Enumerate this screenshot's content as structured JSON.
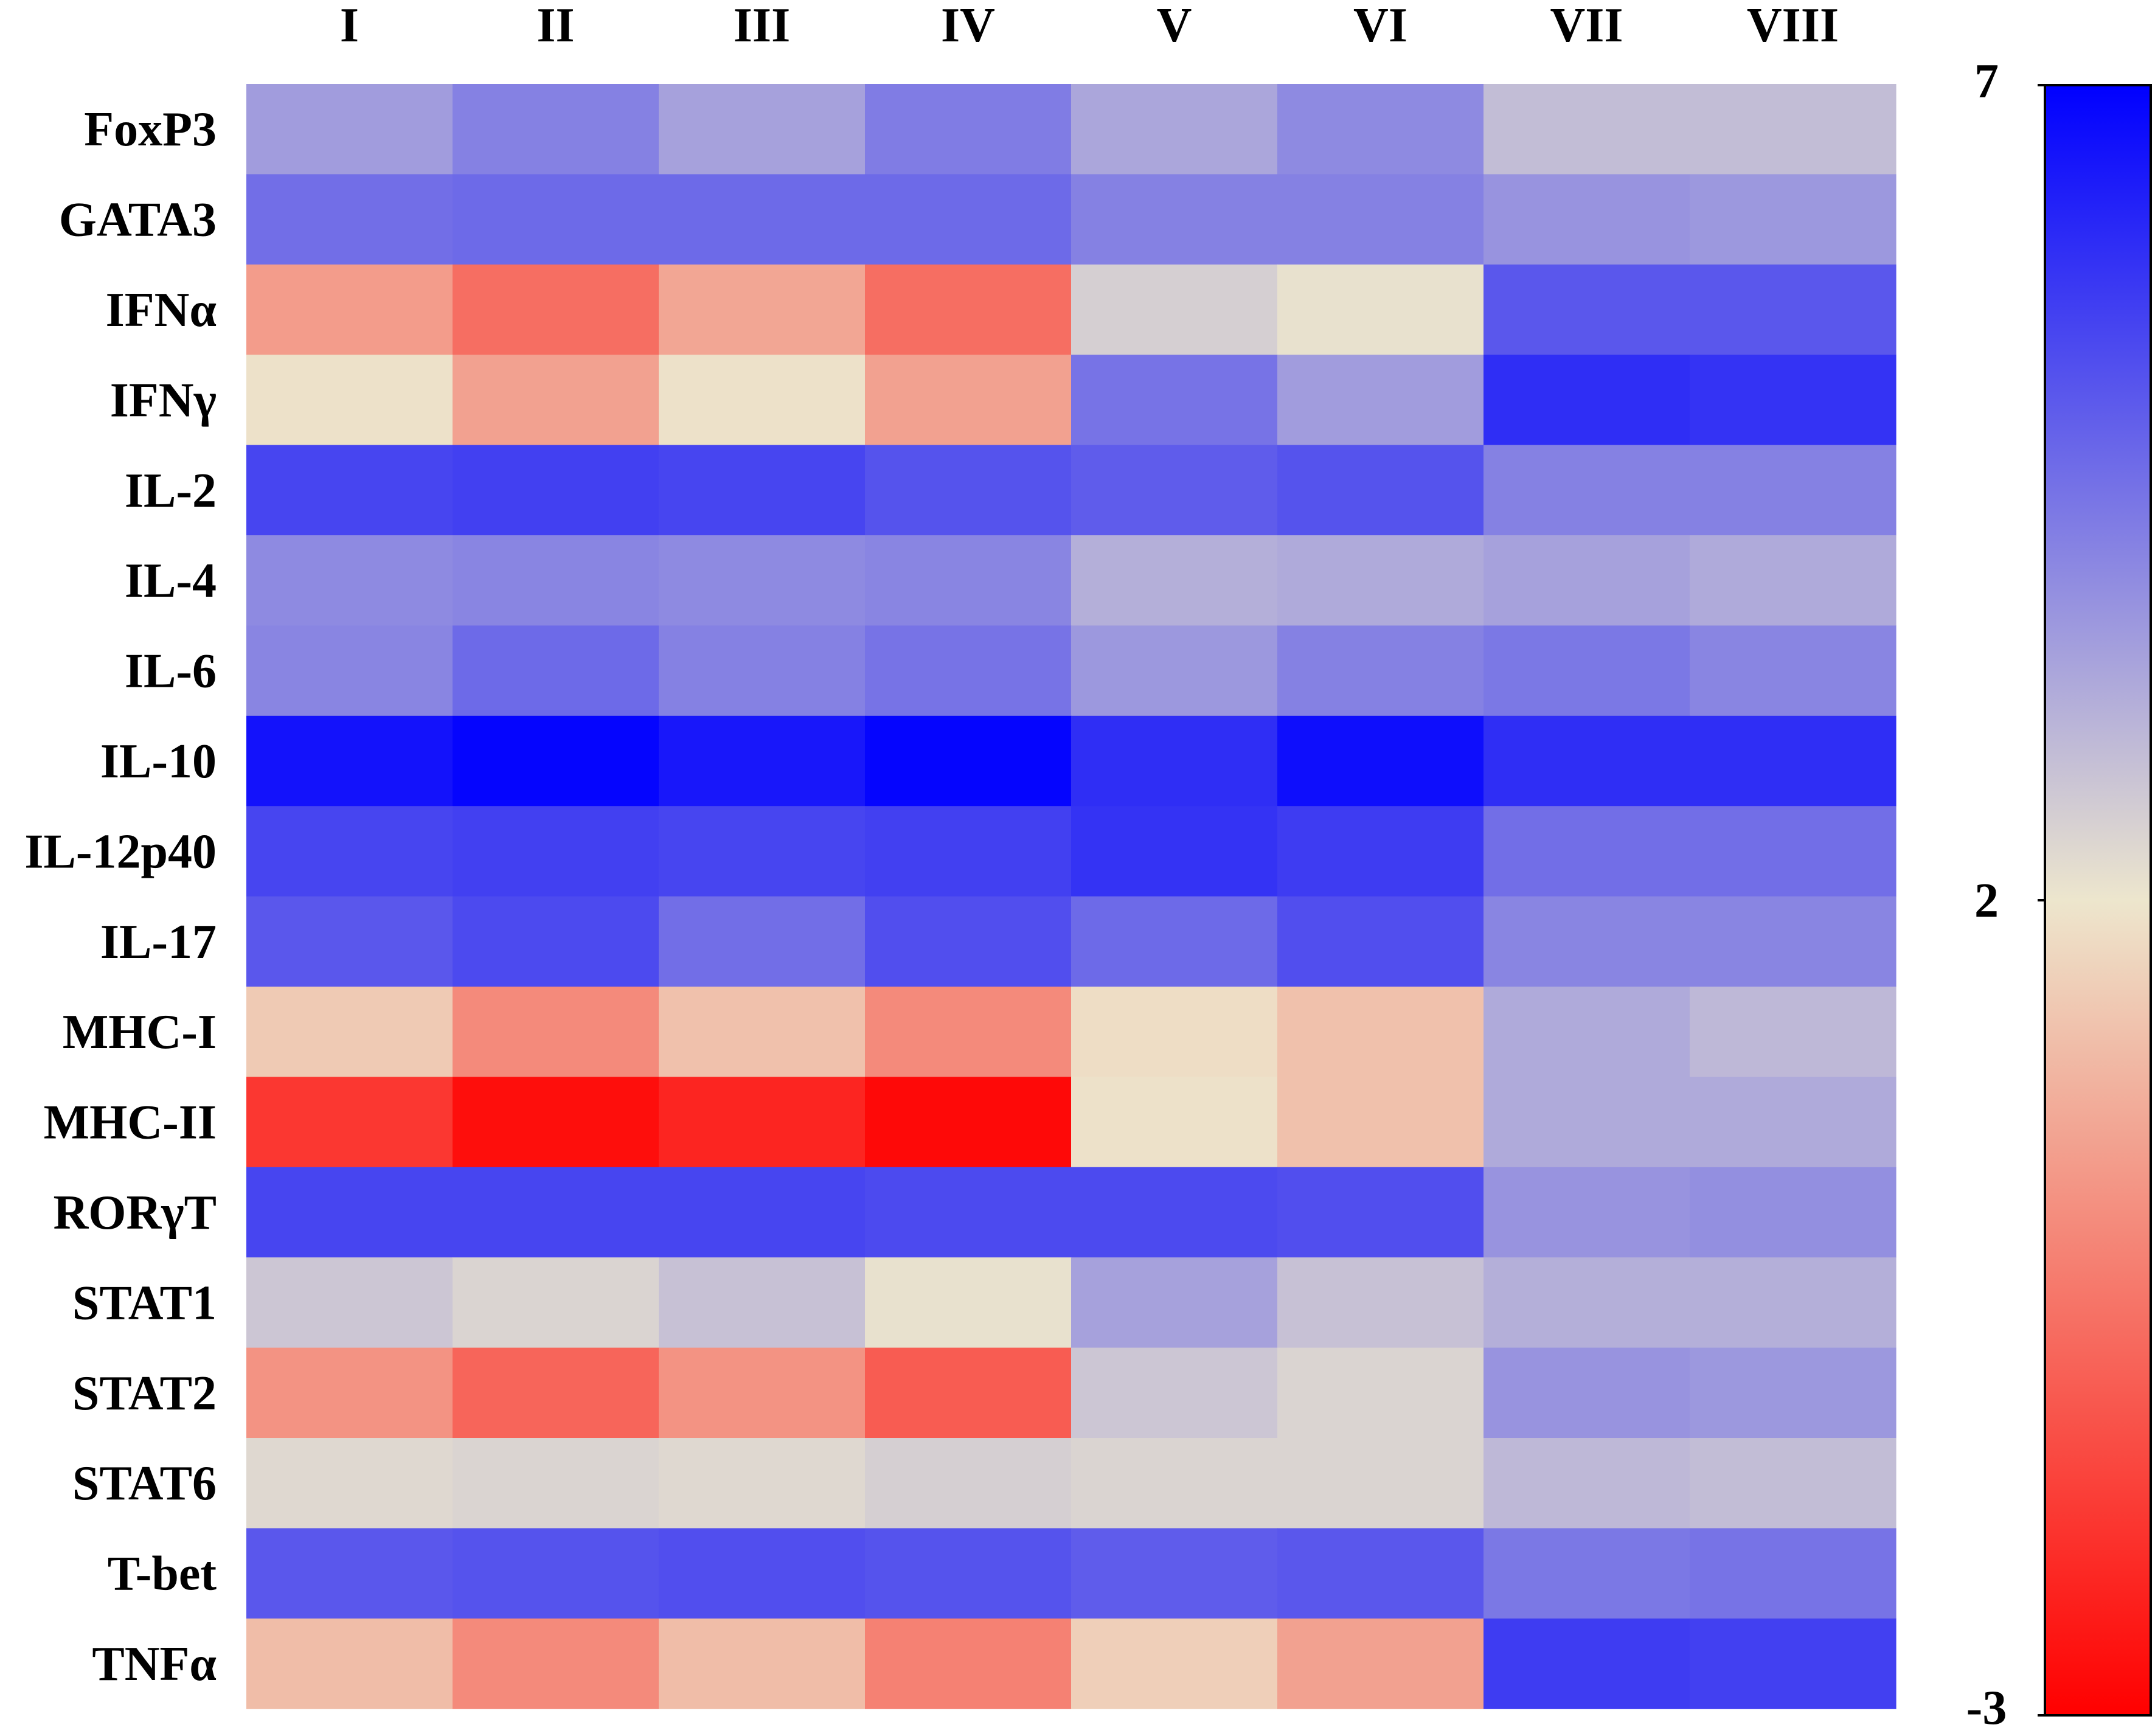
{
  "chart_data": {
    "type": "heatmap",
    "x_categories": [
      "I",
      "II",
      "III",
      "IV",
      "V",
      "VI",
      "VII",
      "VIII"
    ],
    "y_categories": [
      "FoxP3",
      "GATA3",
      "IFNα",
      "IFNγ",
      "IL-2",
      "IL-4",
      "IL-6",
      "IL-10",
      "IL-12p40",
      "IL-17",
      "MHC-I",
      "MHC-II",
      "RORγT",
      "STAT1",
      "STAT2",
      "STAT6",
      "T-bet",
      "TNFα"
    ],
    "values": [
      [
        3.6,
        4.2,
        3.5,
        4.3,
        3.4,
        4.0,
        2.9,
        2.9
      ],
      [
        4.6,
        4.7,
        4.7,
        4.7,
        4.2,
        4.2,
        3.8,
        3.7
      ],
      [
        0.4,
        -0.6,
        0.6,
        -0.6,
        2.5,
        2.1,
        5.1,
        5.1
      ],
      [
        1.9,
        0.5,
        1.9,
        0.5,
        4.5,
        3.6,
        6.0,
        5.9
      ],
      [
        5.5,
        5.6,
        5.5,
        5.2,
        5.0,
        5.2,
        4.2,
        4.2
      ],
      [
        4.0,
        4.1,
        4.0,
        4.1,
        3.2,
        3.3,
        3.5,
        3.3
      ],
      [
        4.1,
        4.7,
        4.2,
        4.5,
        3.7,
        4.2,
        4.4,
        4.1
      ],
      [
        6.6,
        6.9,
        6.5,
        6.9,
        6.0,
        6.7,
        6.0,
        6.0
      ],
      [
        5.5,
        5.6,
        5.5,
        5.6,
        5.9,
        5.7,
        4.6,
        4.6
      ],
      [
        5.1,
        5.4,
        4.6,
        5.3,
        4.7,
        5.3,
        4.1,
        4.1
      ],
      [
        1.4,
        0.0,
        1.2,
        0.0,
        1.8,
        1.2,
        3.3,
        3.0
      ],
      [
        -1.8,
        -2.7,
        -2.2,
        -2.8,
        1.9,
        1.2,
        3.3,
        3.3
      ],
      [
        5.5,
        5.5,
        5.5,
        5.4,
        5.4,
        5.3,
        3.8,
        3.9
      ],
      [
        2.7,
        2.4,
        2.8,
        2.1,
        3.5,
        2.8,
        3.2,
        3.2
      ],
      [
        0.2,
        -0.8,
        0.2,
        -1.0,
        2.7,
        2.4,
        3.8,
        3.7
      ],
      [
        2.3,
        2.4,
        2.3,
        2.5,
        2.4,
        2.4,
        3.0,
        2.9
      ],
      [
        5.1,
        5.2,
        5.3,
        5.2,
        5.0,
        5.1,
        4.4,
        4.5
      ],
      [
        1.1,
        0.0,
        1.1,
        -0.2,
        1.5,
        0.5,
        5.7,
        5.6
      ]
    ],
    "colorbar": {
      "min": -3,
      "max": 7,
      "ticks": [
        "7",
        "2",
        "-3"
      ],
      "colors": {
        "low": "#ff0000",
        "mid": "#ede6cd",
        "high": "#0000ff"
      }
    }
  }
}
